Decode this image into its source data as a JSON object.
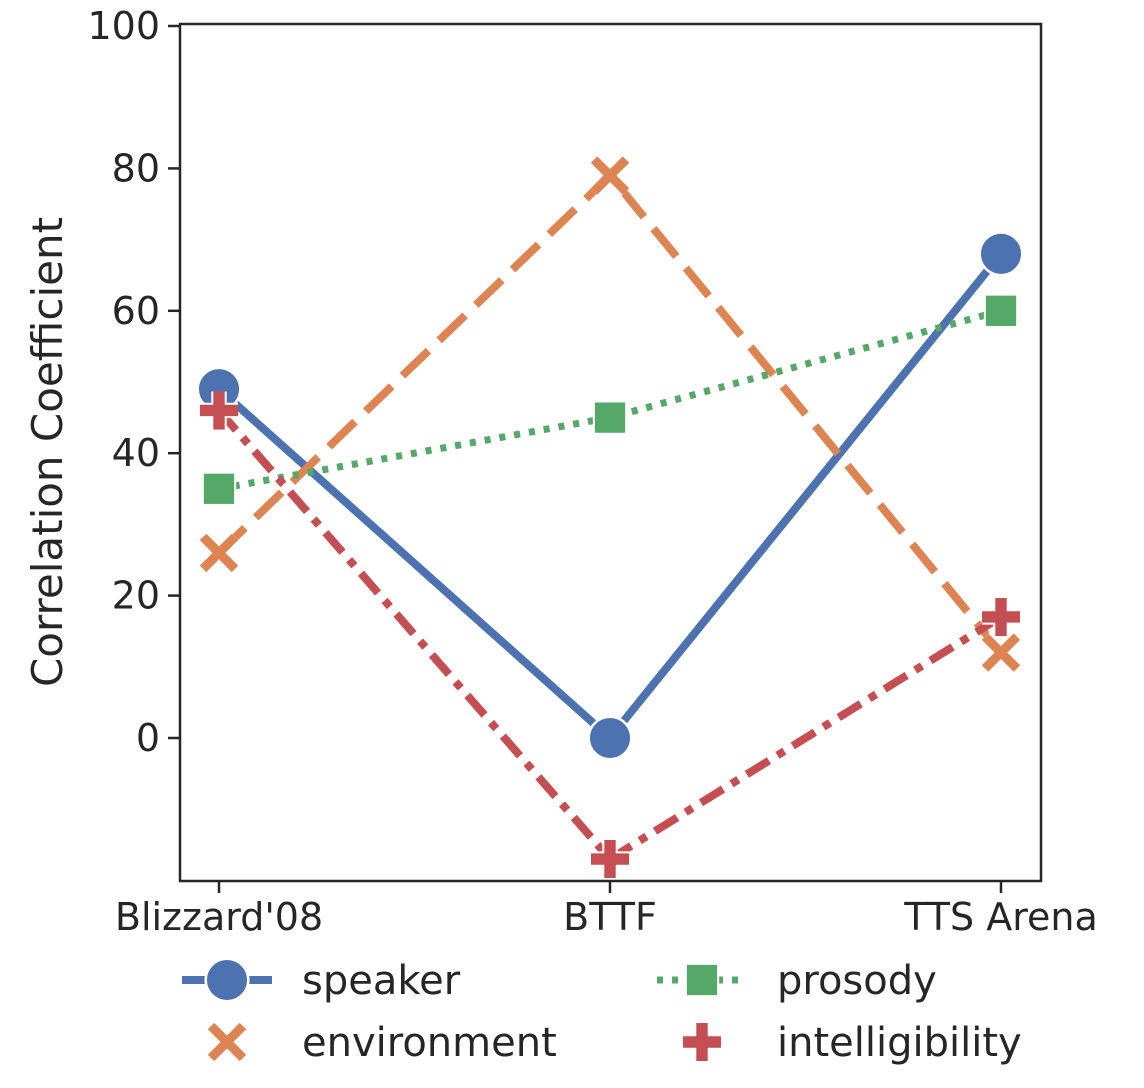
{
  "chart_data": {
    "type": "line",
    "title": "",
    "xlabel": "",
    "ylabel": "Correlation Coefficient",
    "categories": [
      "Blizzard'08",
      "BTTF",
      "TTS Arena"
    ],
    "ylim": [
      -20,
      100
    ],
    "yticks": [
      0,
      20,
      40,
      60,
      80,
      100
    ],
    "grid": false,
    "legend_position": "bottom",
    "series": [
      {
        "name": "speaker",
        "values": [
          49,
          0,
          68
        ],
        "color": "#4c72b0",
        "line_style": "solid",
        "marker": "circle"
      },
      {
        "name": "environment",
        "values": [
          26,
          79,
          12
        ],
        "color": "#dd8452",
        "line_style": "dashed",
        "marker": "x"
      },
      {
        "name": "prosody",
        "values": [
          35,
          45,
          60
        ],
        "color": "#55a868",
        "line_style": "dotted",
        "marker": "square"
      },
      {
        "name": "intelligibility",
        "values": [
          46,
          -17,
          17
        ],
        "color": "#c44e52",
        "line_style": "dashdot",
        "marker": "plus"
      }
    ]
  }
}
